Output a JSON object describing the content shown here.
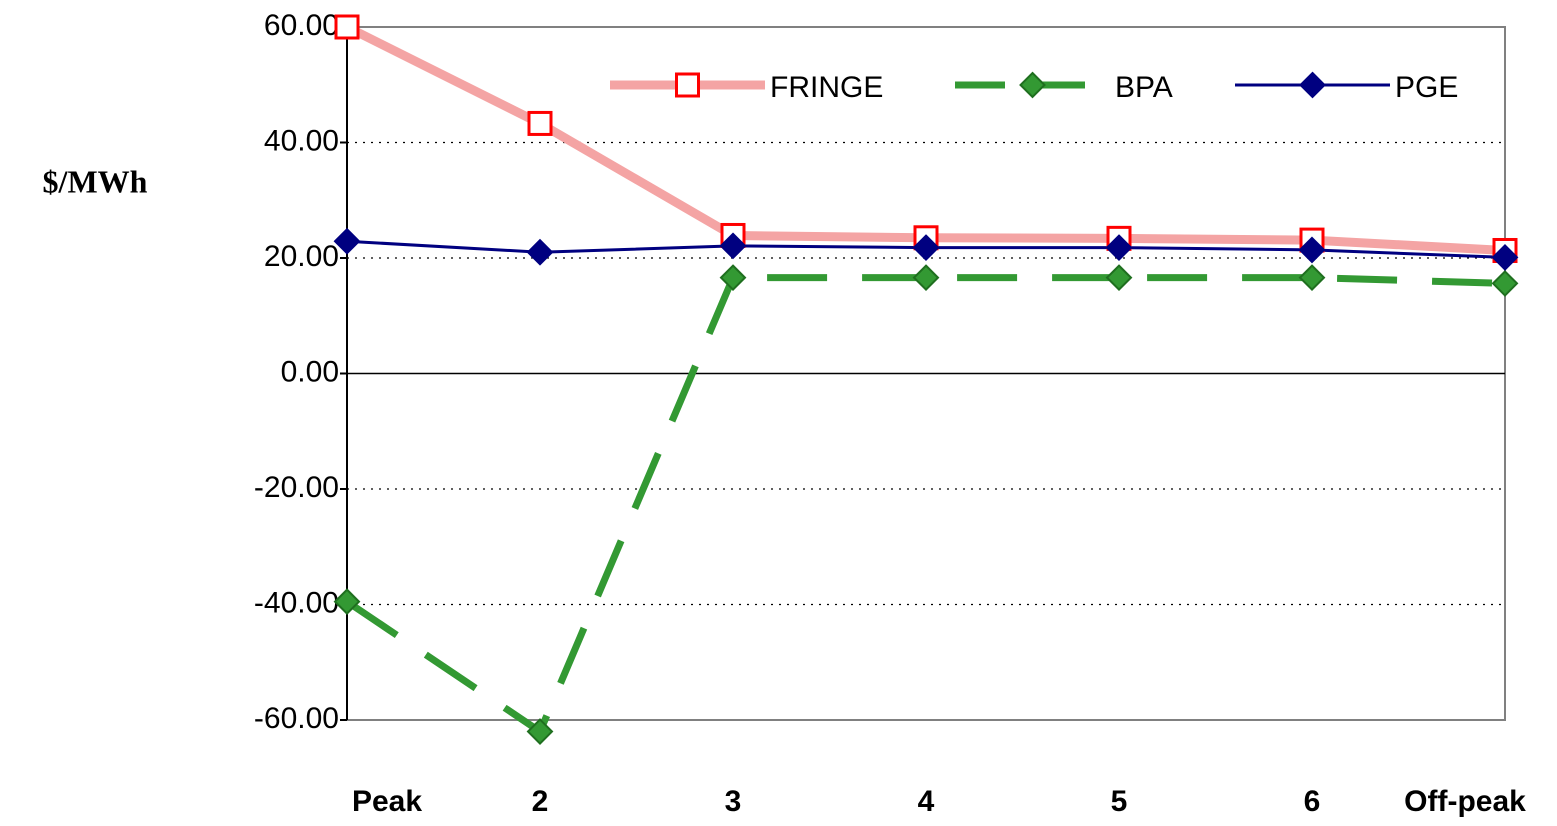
{
  "chart_data": {
    "type": "line",
    "y_label": "$/MWh",
    "categories": [
      "Peak",
      "2",
      "3",
      "4",
      "5",
      "6",
      "Off-peak"
    ],
    "ylim": [
      -60,
      60
    ],
    "yticks": [
      {
        "value": -60,
        "label": "-60.00"
      },
      {
        "value": -40,
        "label": "-40.00"
      },
      {
        "value": -20,
        "label": "-20.00"
      },
      {
        "value": 0,
        "label": "0.00"
      },
      {
        "value": 20,
        "label": "20.00"
      },
      {
        "value": 40,
        "label": "40.00"
      },
      {
        "value": 60,
        "label": "60.00"
      }
    ],
    "grid": true,
    "legend": "upper right",
    "series": [
      {
        "name": "FRINGE",
        "color": "#f4a4a4",
        "marker_color": "#ff0000",
        "marker": "open-square",
        "dash": false,
        "values": [
          60,
          43.3,
          23.9,
          23.5,
          23.4,
          23.1,
          21.3
        ]
      },
      {
        "name": "BPA",
        "color": "#339933",
        "marker_color": "#339933",
        "marker": "diamond",
        "dash": true,
        "values": [
          -39.5,
          -62,
          16.6,
          16.6,
          16.6,
          16.6,
          15.6
        ]
      },
      {
        "name": "PGE",
        "color": "#000080",
        "marker_color": "#000080",
        "marker": "diamond",
        "dash": false,
        "values": [
          22.9,
          21.0,
          22.1,
          21.8,
          21.8,
          21.4,
          20.1
        ]
      }
    ]
  }
}
